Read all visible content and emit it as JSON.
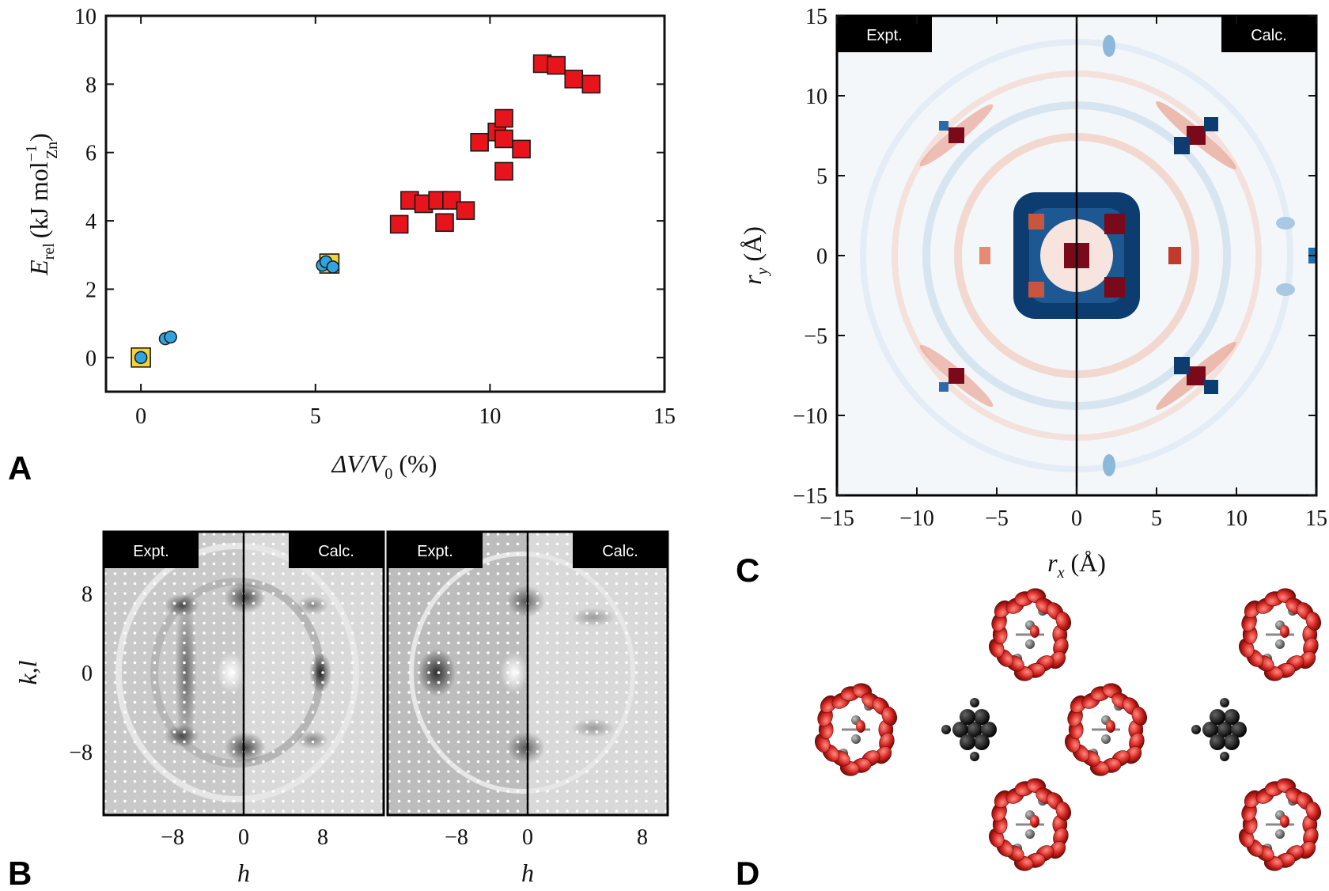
{
  "panels": {
    "A": {
      "label": "A",
      "ylabel": {
        "main": "E",
        "sub": "rel",
        "unit_open": "(kJ mol",
        "sup": "−1",
        "sub2": "Zn",
        "unit_close": ")"
      },
      "xlabel": {
        "delta": "ΔV/V",
        "sub": "0",
        "unit": " (%)"
      },
      "chart_data": {
        "type": "scatter",
        "xlim": [
          -1,
          15
        ],
        "ylim": [
          -1,
          10
        ],
        "xticks": [
          "0",
          "5",
          "10",
          "15"
        ],
        "yticks": [
          "0",
          "2",
          "4",
          "6",
          "8",
          "10"
        ],
        "series": [
          {
            "name": "red squares",
            "color": "#e8141c",
            "marker": "square",
            "points": [
              [
                7.4,
                3.9
              ],
              [
                7.7,
                4.6
              ],
              [
                8.1,
                4.5
              ],
              [
                8.5,
                4.6
              ],
              [
                8.7,
                3.95
              ],
              [
                8.9,
                4.6
              ],
              [
                9.3,
                4.3
              ],
              [
                9.7,
                6.3
              ],
              [
                10.2,
                6.6
              ],
              [
                10.4,
                7.0
              ],
              [
                10.4,
                6.4
              ],
              [
                10.4,
                5.45
              ],
              [
                10.9,
                6.1
              ],
              [
                11.5,
                8.6
              ],
              [
                11.9,
                8.55
              ],
              [
                12.4,
                8.15
              ],
              [
                12.9,
                8.0
              ]
            ]
          },
          {
            "name": "yellow squares",
            "color": "#f4d23a",
            "marker": "square",
            "points": [
              [
                0,
                0
              ],
              [
                5.4,
                2.75
              ]
            ]
          },
          {
            "name": "blue circles",
            "color": "#2fa4e0",
            "marker": "circle",
            "points": [
              [
                0,
                0
              ],
              [
                0.7,
                0.55
              ],
              [
                0.85,
                0.6
              ],
              [
                5.2,
                2.7
              ],
              [
                5.3,
                2.8
              ],
              [
                5.5,
                2.65
              ]
            ]
          }
        ]
      }
    },
    "B": {
      "label": "B",
      "ylabel": "k,l",
      "xlabel": "h",
      "subpanels": [
        {
          "left_tag": "Expt.",
          "right_tag": "Calc.",
          "xticks": [
            "−8",
            "0",
            "8"
          ]
        },
        {
          "left_tag": "Expt.",
          "right_tag": "Calc.",
          "xticks": [
            "−8",
            "0",
            "8"
          ]
        }
      ],
      "yticks": [
        "8",
        "0",
        "−8"
      ]
    },
    "C": {
      "label": "C",
      "left_tag": "Expt.",
      "right_tag": "Calc.",
      "xlabel": {
        "main": "r",
        "sub": "x",
        "unit": " (Å)"
      },
      "ylabel": {
        "main": "r",
        "sub": "y",
        "unit": " (Å)"
      },
      "xticks": [
        "−15",
        "−10",
        "−5",
        "0",
        "5",
        "10",
        "15"
      ],
      "yticks": [
        "15",
        "10",
        "5",
        "0",
        "−5",
        "−10",
        "−15"
      ],
      "colors": {
        "pos": "#7a0a1a",
        "neg": "#0c3c70"
      }
    },
    "D": {
      "label": "D",
      "colors": {
        "oxygen": "#d42520",
        "carbon": "#6e6e6e",
        "zinc": "#141414"
      }
    }
  }
}
